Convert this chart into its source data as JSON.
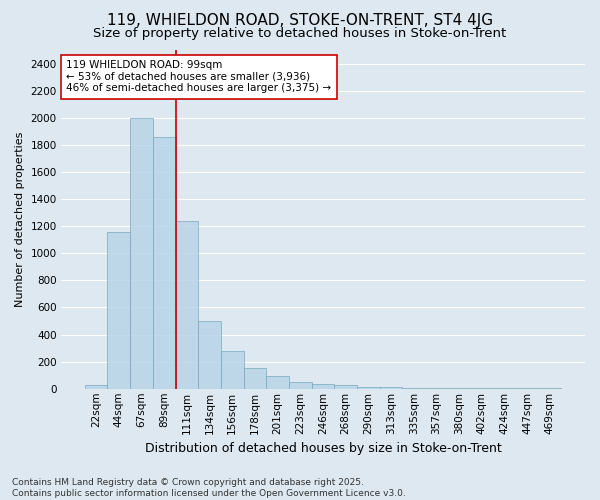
{
  "title": "119, WHIELDON ROAD, STOKE-ON-TRENT, ST4 4JG",
  "subtitle": "Size of property relative to detached houses in Stoke-on-Trent",
  "xlabel": "Distribution of detached houses by size in Stoke-on-Trent",
  "ylabel": "Number of detached properties",
  "categories": [
    "22sqm",
    "44sqm",
    "67sqm",
    "89sqm",
    "111sqm",
    "134sqm",
    "156sqm",
    "178sqm",
    "201sqm",
    "223sqm",
    "246sqm",
    "268sqm",
    "290sqm",
    "313sqm",
    "335sqm",
    "357sqm",
    "380sqm",
    "402sqm",
    "424sqm",
    "447sqm",
    "469sqm"
  ],
  "values": [
    25,
    1160,
    2000,
    1860,
    1240,
    500,
    275,
    155,
    95,
    50,
    35,
    30,
    15,
    10,
    8,
    5,
    5,
    5,
    3,
    2,
    5
  ],
  "bar_color": "#b8d4e8",
  "bar_edgecolor": "#7aaabf",
  "bar_alpha": 0.85,
  "red_line_x": 3.5,
  "annotation_text": "119 WHIELDON ROAD: 99sqm\n← 53% of detached houses are smaller (3,936)\n46% of semi-detached houses are larger (3,375) →",
  "annotation_box_facecolor": "white",
  "annotation_box_edgecolor": "#cc0000",
  "ylim": [
    0,
    2500
  ],
  "yticks": [
    0,
    200,
    400,
    600,
    800,
    1000,
    1200,
    1400,
    1600,
    1800,
    2000,
    2200,
    2400
  ],
  "background_color": "#dde8f0",
  "grid_color": "white",
  "footer_text": "Contains HM Land Registry data © Crown copyright and database right 2025.\nContains public sector information licensed under the Open Government Licence v3.0.",
  "title_fontsize": 11,
  "subtitle_fontsize": 9.5,
  "xlabel_fontsize": 9,
  "ylabel_fontsize": 8,
  "tick_fontsize": 7.5,
  "annotation_fontsize": 7.5,
  "footer_fontsize": 6.5
}
